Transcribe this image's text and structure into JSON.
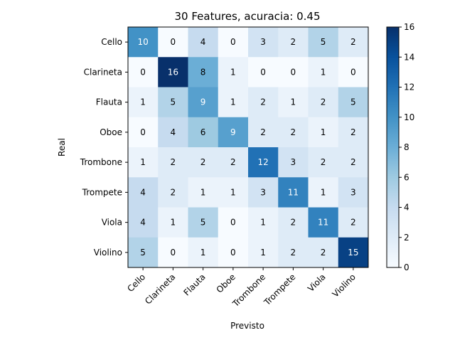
{
  "chart_data": {
    "type": "heatmap",
    "title": "30 Features, acuracia: 0.45",
    "xlabel": "Previsto",
    "ylabel": "Real",
    "x_categories": [
      "Cello",
      "Clarineta",
      "Flauta",
      "Oboe",
      "Trombone",
      "Trompete",
      "Viola",
      "Violino"
    ],
    "y_categories": [
      "Cello",
      "Clarineta",
      "Flauta",
      "Oboe",
      "Trombone",
      "Trompete",
      "Viola",
      "Violino"
    ],
    "values": [
      [
        10,
        0,
        4,
        0,
        3,
        2,
        5,
        2
      ],
      [
        0,
        16,
        8,
        1,
        0,
        0,
        1,
        0
      ],
      [
        1,
        5,
        9,
        1,
        2,
        1,
        2,
        5
      ],
      [
        0,
        4,
        6,
        9,
        2,
        2,
        1,
        2
      ],
      [
        1,
        2,
        2,
        2,
        12,
        3,
        2,
        2
      ],
      [
        4,
        2,
        1,
        1,
        3,
        11,
        1,
        3
      ],
      [
        4,
        1,
        5,
        0,
        1,
        2,
        11,
        2
      ],
      [
        5,
        0,
        1,
        0,
        1,
        2,
        2,
        15
      ]
    ],
    "colormap": "Blues",
    "vmin": 0,
    "vmax": 16,
    "colorbar_ticks": [
      0,
      2,
      4,
      6,
      8,
      10,
      12,
      14,
      16
    ],
    "x_tick_rotation_deg": 45,
    "grid": false
  }
}
